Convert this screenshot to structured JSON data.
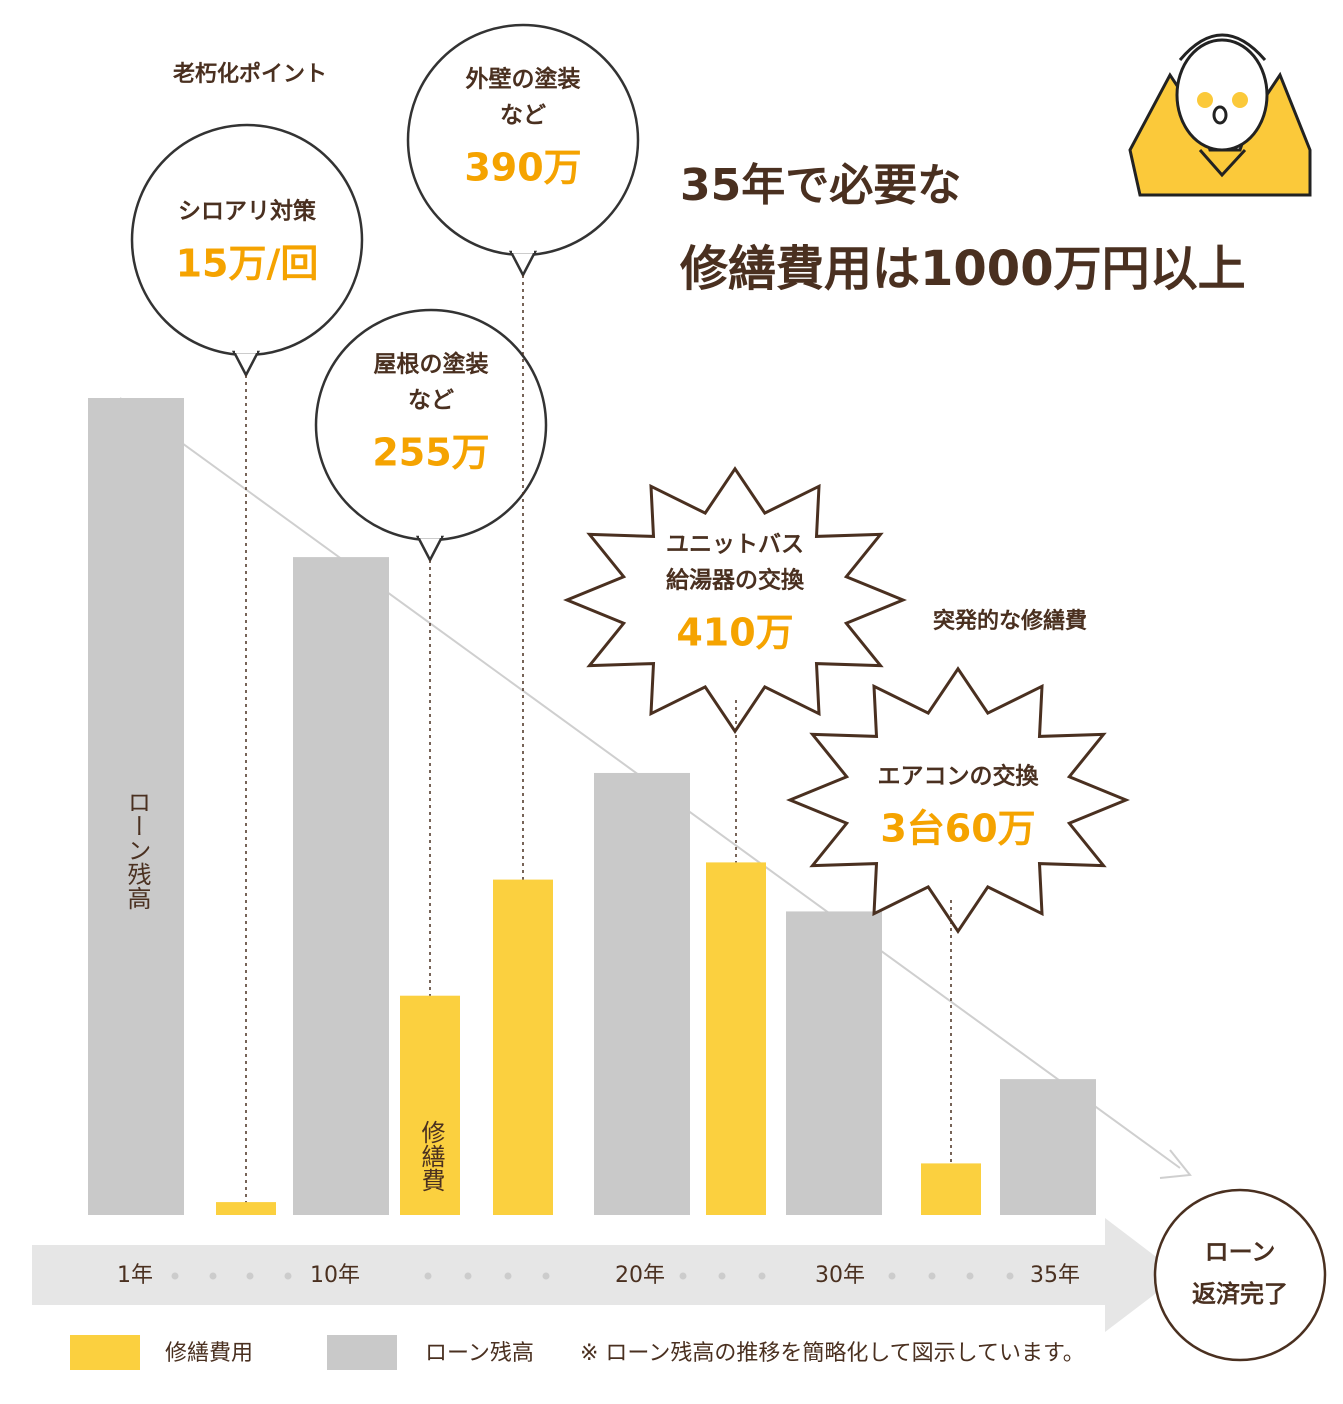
{
  "chart_data": {
    "type": "bar",
    "title": [
      "35年で必要な",
      "修繕費用は1000万円以上"
    ],
    "annotations": [
      "老朽化ポイント",
      "突発的な修繕費"
    ],
    "x_labels": [
      "1年",
      "10年",
      "20年",
      "30年",
      "35年"
    ],
    "end_label": [
      "ローン",
      "返済完了"
    ],
    "series": [
      {
        "name": "ローン残高",
        "color": "#c9c9c9",
        "values": [
          950,
          765,
          514,
          353,
          158
        ]
      },
      {
        "name": "修繕費用",
        "color": "#fbd03f",
        "values": [
          15,
          255,
          390,
          410,
          60
        ],
        "value_labels": [
          "15万/回",
          "255万",
          "390万",
          "410万",
          "3台60万"
        ],
        "descriptions": [
          [
            "シロアリ対策"
          ],
          [
            "屋根の塗装",
            "など"
          ],
          [
            "外壁の塗装",
            "など"
          ],
          [
            "ユニットバス",
            "給湯器の交換"
          ],
          [
            "エアコンの交換"
          ]
        ]
      }
    ],
    "bar_labels": [
      "ローン残高",
      "修繕費"
    ],
    "note": "※ ローン残高の推移を簡略化して図示しています。"
  }
}
